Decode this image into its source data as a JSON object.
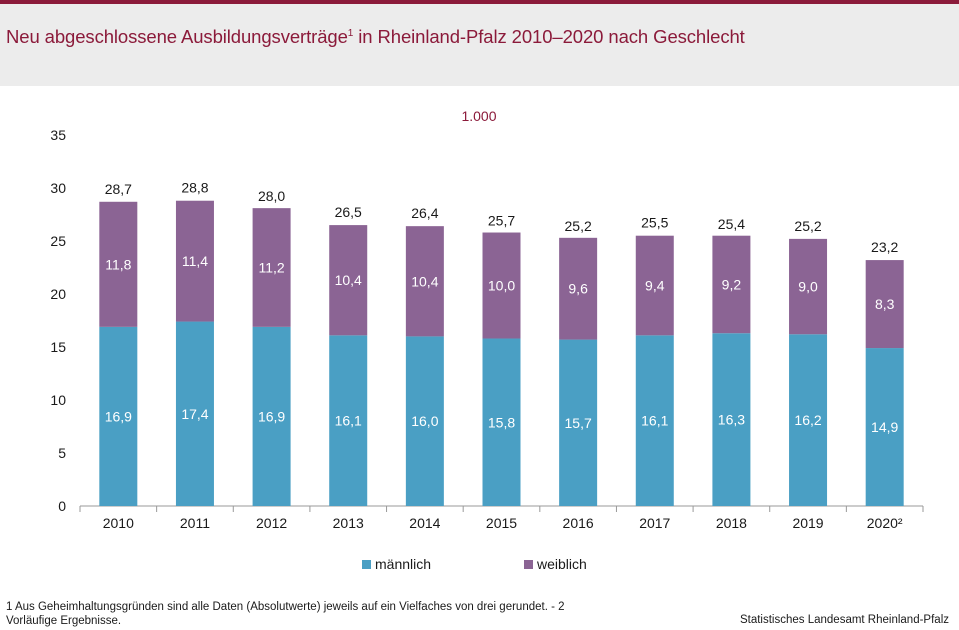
{
  "title_main": "Neu abgeschlossene Ausbildungsverträge",
  "title_sup": "1",
  "title_rest": " in Rheinland-Pfalz 2010–2020 nach Geschlecht",
  "unit_label": "1.000",
  "footnote": "1 Aus Geheimhaltungsgründen  sind alle Daten (Absolutwerte)  jeweils  auf ein Vielfaches  von  drei gerundet.  - 2 Vorläufige  Ergebnisse.",
  "source": "Statistisches Landesamt Rheinland-Pfalz",
  "colors": {
    "maennlich": "#4a9fc4",
    "weiblich": "#8b6494",
    "title": "#8b1a3a"
  },
  "chart_data": {
    "type": "bar",
    "stacked": true,
    "categories": [
      "2010",
      "2011",
      "2012",
      "2013",
      "2014",
      "2015",
      "2016",
      "2017",
      "2018",
      "2019",
      "2020²"
    ],
    "series": [
      {
        "name": "männlich",
        "values": [
          16.9,
          17.4,
          16.9,
          16.1,
          16.0,
          15.8,
          15.7,
          16.1,
          16.3,
          16.2,
          14.9
        ],
        "labels": [
          "16,9",
          "17,4",
          "16,9",
          "16,1",
          "16,0",
          "15,8",
          "15,7",
          "16,1",
          "16,3",
          "16,2",
          "14,9"
        ]
      },
      {
        "name": "weiblich",
        "values": [
          11.8,
          11.4,
          11.2,
          10.4,
          10.4,
          10.0,
          9.6,
          9.4,
          9.2,
          9.0,
          8.3
        ],
        "labels": [
          "11,8",
          "11,4",
          "11,2",
          "10,4",
          "10,4",
          "10,0",
          "9,6",
          "9,4",
          "9,2",
          "9,0",
          "8,3"
        ]
      }
    ],
    "totals": [
      28.7,
      28.8,
      28.0,
      26.5,
      26.4,
      25.7,
      25.2,
      25.5,
      25.4,
      25.2,
      23.2
    ],
    "total_labels": [
      "28,7",
      "28,8",
      "28,0",
      "26,5",
      "26,4",
      "25,7",
      "25,2",
      "25,5",
      "25,4",
      "25,2",
      "23,2"
    ],
    "yticks": [
      0,
      5,
      10,
      15,
      20,
      25,
      30,
      35
    ],
    "ylim": [
      0,
      35
    ],
    "grid": false,
    "legend_position": "bottom"
  }
}
